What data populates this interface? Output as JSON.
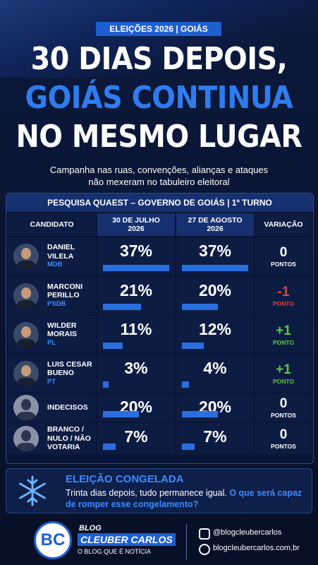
{
  "header": {
    "badge": "ELEIÇÕES 2026 | GOIÁS",
    "title": [
      "30 DIAS DEPOIS,",
      "GOIÁS CONTINUA",
      "NO MESMO LUGAR"
    ],
    "subtitle": [
      "Campanha nas ruas, convenções, alianças e ataques",
      "não mexeram no tabuleiro eleitoral"
    ]
  },
  "table": {
    "title": "PESQUISA QUAEST – GOVERNO DE GOIÁS | 1º TURNO",
    "columns": [
      [
        "CANDIDATO"
      ],
      [
        "30 DE JULHO",
        "2026"
      ],
      [
        "27 DE AGOSTO",
        "2026"
      ],
      [
        "VARIAÇÃO"
      ]
    ],
    "rows": [
      {
        "name": [
          "DANIEL",
          "VILELA"
        ],
        "party": "MDB",
        "jul": {
          "value": 37,
          "label": "37%"
        },
        "aug": {
          "value": 37,
          "label": "37%"
        },
        "change": "0",
        "unit": "PONTOS",
        "color": "#ffffff"
      },
      {
        "name": [
          "MARCONI",
          "PERILLO"
        ],
        "party": "PSDB",
        "jul": {
          "value": 21,
          "label": "21%"
        },
        "aug": {
          "value": 20,
          "label": "20%"
        },
        "change": "-1",
        "unit": "PONTO",
        "color": "#e0453c"
      },
      {
        "name": [
          "WILDER",
          "MORAIS"
        ],
        "party": "PL",
        "jul": {
          "value": 11,
          "label": "11%"
        },
        "aug": {
          "value": 12,
          "label": "12%"
        },
        "change": "+1",
        "unit": "PONTO",
        "color": "#5cc84a"
      },
      {
        "name": [
          "LUIS CESAR",
          "BUENO"
        ],
        "party": "PT",
        "jul": {
          "value": 3,
          "label": "3%"
        },
        "aug": {
          "value": 4,
          "label": "4%"
        },
        "change": "+1",
        "unit": "PONTO",
        "color": "#5cc84a"
      },
      {
        "name": [
          "INDECISOS"
        ],
        "jul": {
          "value": 20,
          "label": "20%"
        },
        "aug": {
          "value": 20,
          "label": "20%"
        },
        "change": "0",
        "unit": "PONTOS",
        "color": "#ffffff"
      },
      {
        "name": [
          "BRANCO /",
          "NULO / NÃO",
          "VOTARIA"
        ],
        "jul": {
          "value": 7,
          "label": "7%"
        },
        "aug": {
          "value": 7,
          "label": "7%"
        },
        "change": "0",
        "unit": "PONTOS",
        "color": "#ffffff"
      }
    ]
  },
  "callout": {
    "title": "ELEIÇÃO CONGELADA",
    "text": "Trinta dias depois, tudo permanece igual.",
    "highlight": "O que será capaz de romper esse congelamento?"
  },
  "brand": {
    "logo": "BC",
    "blog": "BLOG",
    "name": "CLEUBER CARLOS",
    "tagline": "O BLOG QUE É NOTÍCIA",
    "instagram": "@blogcleubercarlos",
    "site": "blogcleubercarlos.com.br"
  }
}
